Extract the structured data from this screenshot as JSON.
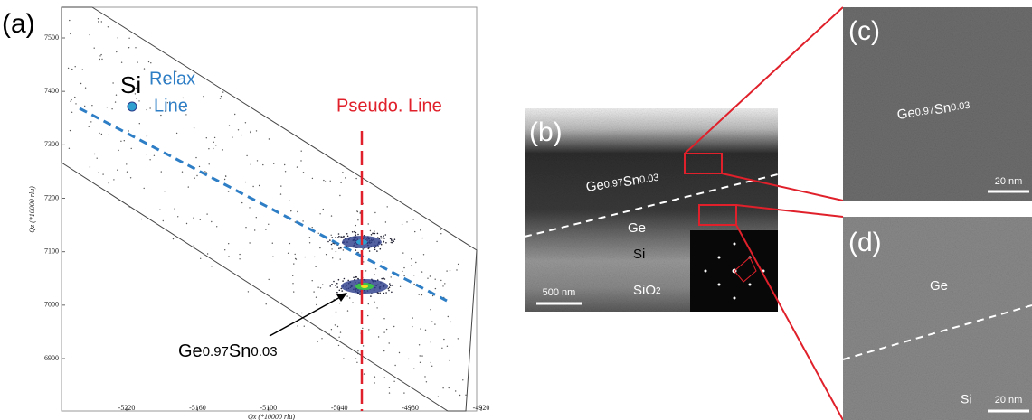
{
  "panel_a": {
    "label": "(a)",
    "x_axis_label": "Qx (*10000 rlu)",
    "y_axis_label": "Qz (*10000 rlu)",
    "xticks": [
      -5220,
      -5160,
      -5100,
      -5040,
      -4980,
      -4920
    ],
    "yticks": [
      7500,
      7400,
      7300,
      7200,
      7100,
      7000,
      6900
    ],
    "si_label": "Si",
    "relax_label": [
      "Relax",
      "Line"
    ],
    "pseudo_label": "Pseudo. Line",
    "gesn_label": [
      "Ge",
      "0.97",
      "Sn",
      "0.03"
    ]
  },
  "panel_b": {
    "label": "(b)",
    "gesn_label": [
      "Ge",
      "0.97",
      "Sn",
      "0.03"
    ],
    "ge_label": "Ge",
    "si_label": "Si",
    "sio2_label": [
      "SiO",
      "2"
    ],
    "scale_bar": "500 nm"
  },
  "panel_c": {
    "label": "(c)",
    "gesn_label": [
      "Ge",
      "0.97",
      "Sn",
      "0.03"
    ],
    "scale_bar": "20 nm"
  },
  "panel_d": {
    "label": "(d)",
    "ge_label": "Ge",
    "si_label": "Si",
    "scale_bar": "20 nm"
  }
}
